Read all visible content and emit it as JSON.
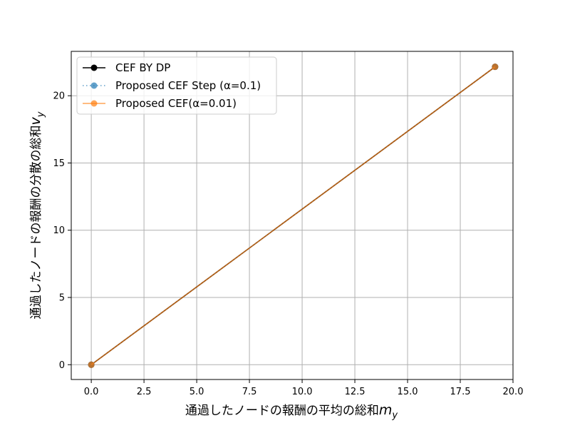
{
  "chart_data": {
    "type": "line",
    "xlabel": "通過したノードの報酬の平均の総和",
    "xlabel_sub": "m",
    "xlabel_subscript": "y",
    "ylabel": "通過したノードの報酬の分散の総和",
    "ylabel_sub": "v",
    "ylabel_subscript": "y",
    "xlim": [
      -0.95,
      20.0
    ],
    "ylim": [
      -1.1,
      23.3
    ],
    "xticks": [
      0.0,
      2.5,
      5.0,
      7.5,
      10.0,
      12.5,
      15.0,
      17.5,
      20.0
    ],
    "xtick_labels": [
      "0.0",
      "2.5",
      "5.0",
      "7.5",
      "10.0",
      "12.5",
      "15.0",
      "17.5",
      "20.0"
    ],
    "yticks": [
      0,
      5,
      10,
      15,
      20
    ],
    "ytick_labels": [
      "0",
      "5",
      "10",
      "15",
      "20"
    ],
    "grid": true,
    "legend_position": "upper-left",
    "series": [
      {
        "name": "CEF BY DP",
        "color": "#000000",
        "linestyle": "solid",
        "marker": "circle",
        "x": [
          0.0,
          19.15
        ],
        "y": [
          0.0,
          22.15
        ]
      },
      {
        "name": "Proposed CEF Step (α=0.1)",
        "color": "#1f77b4",
        "linestyle": "dotted",
        "marker": "circle",
        "x": [
          0.0,
          19.15
        ],
        "y": [
          0.0,
          22.15
        ]
      },
      {
        "name": "Proposed CEF(α=0.01)",
        "color": "#ff7f0e",
        "linestyle": "solid",
        "marker": "circle",
        "x": [
          0.0,
          19.15
        ],
        "y": [
          0.0,
          22.15
        ]
      }
    ]
  }
}
